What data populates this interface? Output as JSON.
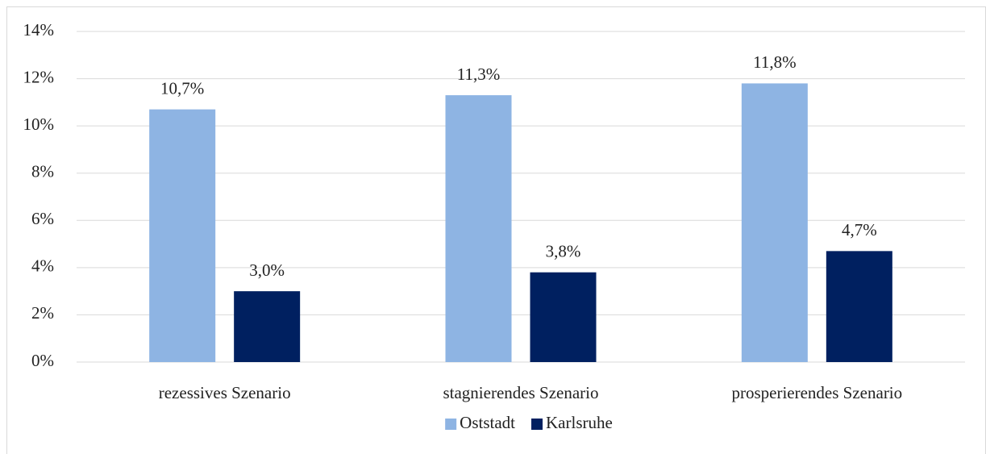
{
  "chart_data": {
    "type": "bar",
    "categories": [
      "rezessives Szenario",
      "stagnierendes Szenario",
      "prosperierendes Szenario"
    ],
    "series": [
      {
        "name": "Oststadt",
        "color": "#8eb4e3",
        "values": [
          10.7,
          11.3,
          11.8
        ],
        "value_labels": [
          "10,7%",
          "11,3%",
          "11,8%"
        ]
      },
      {
        "name": "Karlsruhe",
        "color": "#002060",
        "values": [
          3.0,
          3.8,
          4.7
        ],
        "value_labels": [
          "3,0%",
          "3,8%",
          "4,7%"
        ]
      }
    ],
    "ylim": [
      0,
      14
    ],
    "yticks": [
      {
        "value": 0,
        "label": "0%"
      },
      {
        "value": 2,
        "label": "2%"
      },
      {
        "value": 4,
        "label": "4%"
      },
      {
        "value": 6,
        "label": "6%"
      },
      {
        "value": 8,
        "label": "8%"
      },
      {
        "value": 10,
        "label": "10%"
      },
      {
        "value": 12,
        "label": "12%"
      },
      {
        "value": 14,
        "label": "14%"
      }
    ],
    "grid": true,
    "legend": "bottom"
  }
}
